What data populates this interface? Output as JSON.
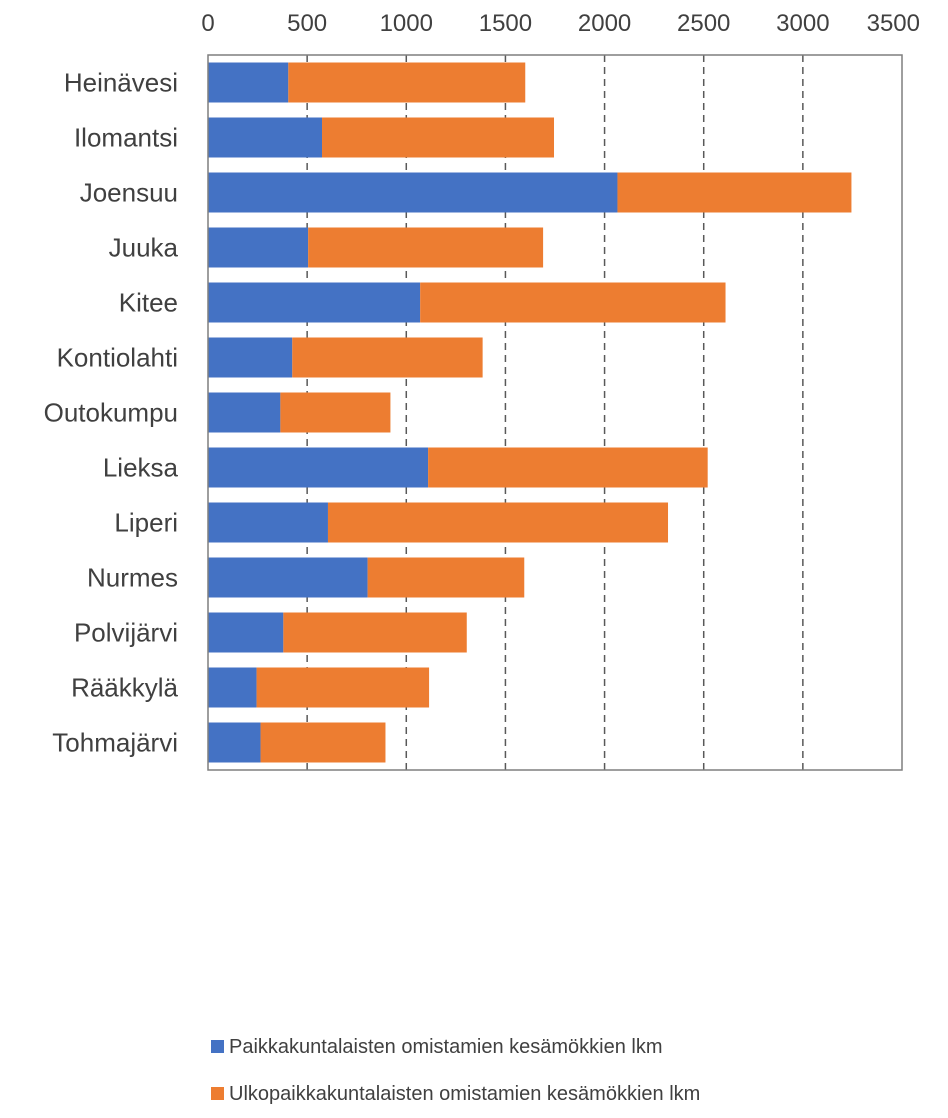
{
  "chart_data": {
    "type": "bar",
    "orientation": "horizontal",
    "stacked": true,
    "categories": [
      "Heinävesi",
      "Ilomantsi",
      "Joensuu",
      "Juuka",
      "Kitee",
      "Kontiolahti",
      "Outokumpu",
      "Lieksa",
      "Liperi",
      "Nurmes",
      "Polvijärvi",
      "Rääkkylä",
      "Tohmajärvi"
    ],
    "series": [
      {
        "name": "Paikkakuntalaisten omistamien kesämökkien lkm",
        "color": "#4472C4",
        "values": [
          405,
          575,
          2065,
          505,
          1070,
          425,
          365,
          1110,
          605,
          805,
          380,
          245,
          265
        ]
      },
      {
        "name": "Ulkopaikkakuntalaisten omistamien kesämökkien lkm",
        "color": "#ED7D31",
        "values": [
          1195,
          1170,
          1180,
          1185,
          1540,
          960,
          555,
          1410,
          1715,
          790,
          925,
          870,
          630
        ]
      }
    ],
    "x_ticks": [
      "0",
      "500",
      "1000",
      "1500",
      "2000",
      "2500",
      "3000",
      "3500"
    ],
    "xlim": [
      0,
      3500
    ],
    "x_axis_position": "top",
    "grid": "vertical dashed",
    "legend_position": "bottom",
    "title": "",
    "xlabel": "",
    "ylabel": ""
  }
}
